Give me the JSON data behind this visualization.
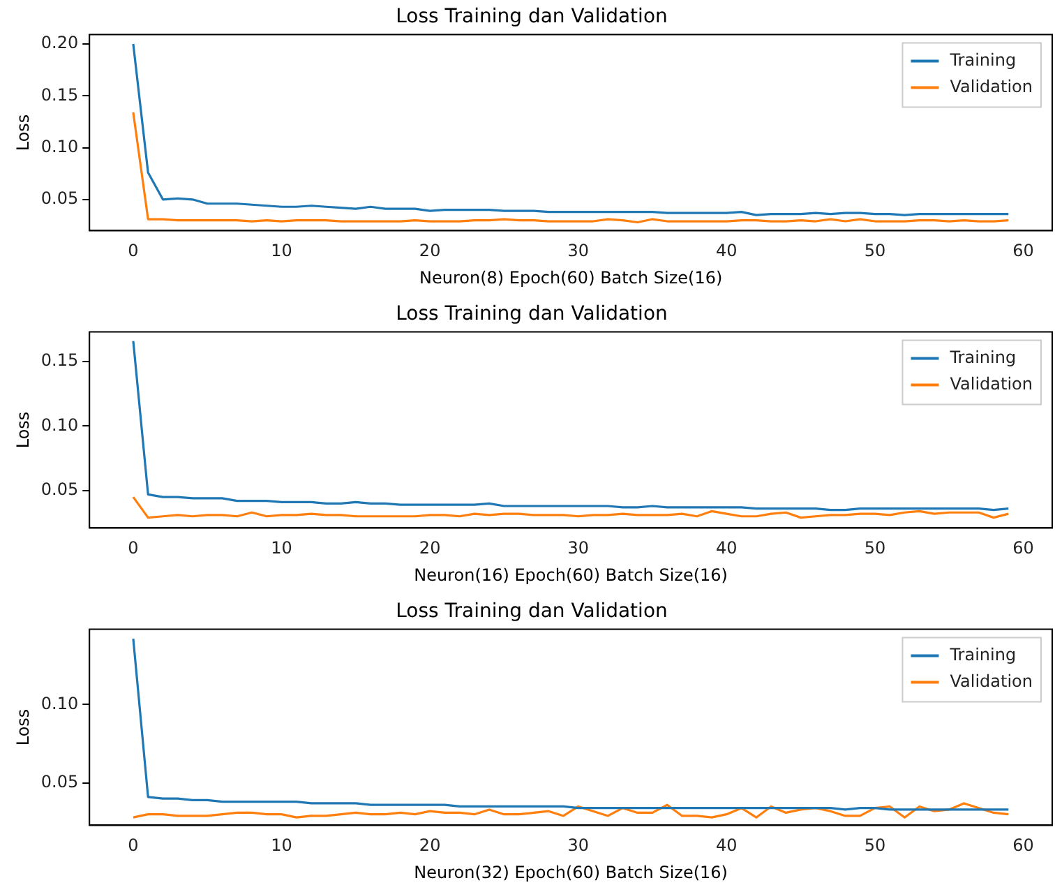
{
  "chart_data": [
    {
      "type": "line",
      "title": "Loss Training dan Validation",
      "xlabel": "Neuron(8) Epoch(60) Batch Size(16)",
      "ylabel": "Loss",
      "xlim": [
        -2.95,
        61.95
      ],
      "xticks": [
        0,
        10,
        20,
        30,
        40,
        50,
        60
      ],
      "ylim": [
        0.02,
        0.209
      ],
      "yticks": [
        {
          "value": 0.05,
          "label": "0.05"
        },
        {
          "value": 0.1,
          "label": "0.10"
        },
        {
          "value": 0.15,
          "label": "0.15"
        },
        {
          "value": 0.2,
          "label": "0.20"
        }
      ],
      "legend": "top right",
      "grid": false,
      "x": [
        0,
        1,
        2,
        3,
        4,
        5,
        6,
        7,
        8,
        9,
        10,
        11,
        12,
        13,
        14,
        15,
        16,
        17,
        18,
        19,
        20,
        21,
        22,
        23,
        24,
        25,
        26,
        27,
        28,
        29,
        30,
        31,
        32,
        33,
        34,
        35,
        36,
        37,
        38,
        39,
        40,
        41,
        42,
        43,
        44,
        45,
        46,
        47,
        48,
        49,
        50,
        51,
        52,
        53,
        54,
        55,
        56,
        57,
        58,
        59
      ],
      "series": [
        {
          "name": "Training",
          "color": "#1f77b4",
          "values": [
            0.2,
            0.076,
            0.05,
            0.051,
            0.05,
            0.046,
            0.046,
            0.046,
            0.045,
            0.044,
            0.043,
            0.043,
            0.044,
            0.043,
            0.042,
            0.041,
            0.043,
            0.041,
            0.041,
            0.041,
            0.039,
            0.04,
            0.04,
            0.04,
            0.04,
            0.039,
            0.039,
            0.039,
            0.038,
            0.038,
            0.038,
            0.038,
            0.038,
            0.038,
            0.038,
            0.038,
            0.037,
            0.037,
            0.037,
            0.037,
            0.037,
            0.038,
            0.035,
            0.036,
            0.036,
            0.036,
            0.037,
            0.036,
            0.037,
            0.037,
            0.036,
            0.036,
            0.035,
            0.036,
            0.036,
            0.036,
            0.036,
            0.036,
            0.036,
            0.036
          ]
        },
        {
          "name": "Validation",
          "color": "#ff7f0e",
          "values": [
            0.134,
            0.031,
            0.031,
            0.03,
            0.03,
            0.03,
            0.03,
            0.03,
            0.029,
            0.03,
            0.029,
            0.03,
            0.03,
            0.03,
            0.029,
            0.029,
            0.029,
            0.029,
            0.029,
            0.03,
            0.029,
            0.029,
            0.029,
            0.03,
            0.03,
            0.031,
            0.03,
            0.03,
            0.029,
            0.029,
            0.029,
            0.029,
            0.031,
            0.03,
            0.028,
            0.031,
            0.029,
            0.029,
            0.029,
            0.029,
            0.029,
            0.03,
            0.03,
            0.029,
            0.029,
            0.03,
            0.029,
            0.031,
            0.029,
            0.031,
            0.029,
            0.029,
            0.029,
            0.03,
            0.03,
            0.029,
            0.03,
            0.029,
            0.029,
            0.03
          ]
        }
      ]
    },
    {
      "type": "line",
      "title": "Loss Training dan Validation",
      "xlabel": "Neuron(16) Epoch(60) Batch Size(16)",
      "ylabel": "Loss",
      "xlim": [
        -2.95,
        61.95
      ],
      "xticks": [
        0,
        10,
        20,
        30,
        40,
        50,
        60
      ],
      "ylim": [
        0.021,
        0.173
      ],
      "yticks": [
        {
          "value": 0.05,
          "label": "0.05"
        },
        {
          "value": 0.1,
          "label": "0.10"
        },
        {
          "value": 0.15,
          "label": "0.15"
        }
      ],
      "legend": "top right",
      "grid": false,
      "x": [
        0,
        1,
        2,
        3,
        4,
        5,
        6,
        7,
        8,
        9,
        10,
        11,
        12,
        13,
        14,
        15,
        16,
        17,
        18,
        19,
        20,
        21,
        22,
        23,
        24,
        25,
        26,
        27,
        28,
        29,
        30,
        31,
        32,
        33,
        34,
        35,
        36,
        37,
        38,
        39,
        40,
        41,
        42,
        43,
        44,
        45,
        46,
        47,
        48,
        49,
        50,
        51,
        52,
        53,
        54,
        55,
        56,
        57,
        58,
        59
      ],
      "series": [
        {
          "name": "Training",
          "color": "#1f77b4",
          "values": [
            0.166,
            0.047,
            0.045,
            0.045,
            0.044,
            0.044,
            0.044,
            0.042,
            0.042,
            0.042,
            0.041,
            0.041,
            0.041,
            0.04,
            0.04,
            0.041,
            0.04,
            0.04,
            0.039,
            0.039,
            0.039,
            0.039,
            0.039,
            0.039,
            0.04,
            0.038,
            0.038,
            0.038,
            0.038,
            0.038,
            0.038,
            0.038,
            0.038,
            0.037,
            0.037,
            0.038,
            0.037,
            0.037,
            0.037,
            0.037,
            0.037,
            0.037,
            0.036,
            0.036,
            0.036,
            0.036,
            0.036,
            0.035,
            0.035,
            0.036,
            0.036,
            0.036,
            0.036,
            0.036,
            0.036,
            0.036,
            0.036,
            0.036,
            0.035,
            0.036
          ]
        },
        {
          "name": "Validation",
          "color": "#ff7f0e",
          "values": [
            0.045,
            0.029,
            0.03,
            0.031,
            0.03,
            0.031,
            0.031,
            0.03,
            0.033,
            0.03,
            0.031,
            0.031,
            0.032,
            0.031,
            0.031,
            0.03,
            0.03,
            0.03,
            0.03,
            0.03,
            0.031,
            0.031,
            0.03,
            0.032,
            0.031,
            0.032,
            0.032,
            0.031,
            0.031,
            0.031,
            0.03,
            0.031,
            0.031,
            0.032,
            0.031,
            0.031,
            0.031,
            0.032,
            0.03,
            0.034,
            0.032,
            0.03,
            0.03,
            0.032,
            0.033,
            0.029,
            0.03,
            0.031,
            0.031,
            0.032,
            0.032,
            0.031,
            0.033,
            0.034,
            0.032,
            0.033,
            0.033,
            0.033,
            0.029,
            0.032
          ]
        }
      ]
    },
    {
      "type": "line",
      "title": "Loss Training dan Validation",
      "xlabel": "Neuron(32) Epoch(60) Batch Size(16)",
      "ylabel": "Loss",
      "xlim": [
        -2.95,
        61.95
      ],
      "xticks": [
        0,
        10,
        20,
        30,
        40,
        50,
        60
      ],
      "ylim": [
        0.023,
        0.148
      ],
      "yticks": [
        {
          "value": 0.05,
          "label": "0.05"
        },
        {
          "value": 0.1,
          "label": "0.10"
        }
      ],
      "legend": "top right",
      "grid": false,
      "x": [
        0,
        1,
        2,
        3,
        4,
        5,
        6,
        7,
        8,
        9,
        10,
        11,
        12,
        13,
        14,
        15,
        16,
        17,
        18,
        19,
        20,
        21,
        22,
        23,
        24,
        25,
        26,
        27,
        28,
        29,
        30,
        31,
        32,
        33,
        34,
        35,
        36,
        37,
        38,
        39,
        40,
        41,
        42,
        43,
        44,
        45,
        46,
        47,
        48,
        49,
        50,
        51,
        52,
        53,
        54,
        55,
        56,
        57,
        58,
        59
      ],
      "series": [
        {
          "name": "Training",
          "color": "#1f77b4",
          "values": [
            0.142,
            0.041,
            0.04,
            0.04,
            0.039,
            0.039,
            0.038,
            0.038,
            0.038,
            0.038,
            0.038,
            0.038,
            0.037,
            0.037,
            0.037,
            0.037,
            0.036,
            0.036,
            0.036,
            0.036,
            0.036,
            0.036,
            0.035,
            0.035,
            0.035,
            0.035,
            0.035,
            0.035,
            0.035,
            0.035,
            0.034,
            0.034,
            0.034,
            0.034,
            0.034,
            0.034,
            0.034,
            0.034,
            0.034,
            0.034,
            0.034,
            0.034,
            0.034,
            0.034,
            0.034,
            0.034,
            0.034,
            0.034,
            0.033,
            0.034,
            0.034,
            0.033,
            0.033,
            0.033,
            0.033,
            0.033,
            0.033,
            0.033,
            0.033,
            0.033
          ]
        },
        {
          "name": "Validation",
          "color": "#ff7f0e",
          "values": [
            0.028,
            0.03,
            0.03,
            0.029,
            0.029,
            0.029,
            0.03,
            0.031,
            0.031,
            0.03,
            0.03,
            0.028,
            0.029,
            0.029,
            0.03,
            0.031,
            0.03,
            0.03,
            0.031,
            0.03,
            0.032,
            0.031,
            0.031,
            0.03,
            0.033,
            0.03,
            0.03,
            0.031,
            0.032,
            0.029,
            0.035,
            0.032,
            0.029,
            0.034,
            0.031,
            0.031,
            0.036,
            0.029,
            0.029,
            0.028,
            0.03,
            0.034,
            0.028,
            0.035,
            0.031,
            0.033,
            0.034,
            0.032,
            0.029,
            0.029,
            0.034,
            0.035,
            0.028,
            0.035,
            0.032,
            0.033,
            0.037,
            0.034,
            0.031,
            0.03
          ]
        }
      ]
    }
  ]
}
